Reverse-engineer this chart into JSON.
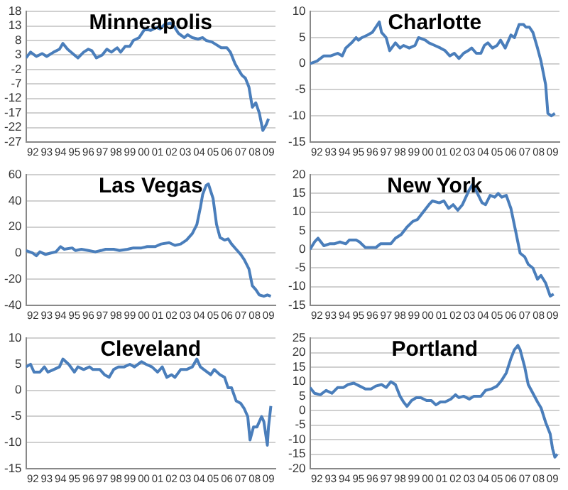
{
  "chart_data": [
    {
      "type": "line",
      "title": "Minneapolis",
      "xlim": [
        "1992-01",
        "2010-01"
      ],
      "ylim": [
        -27,
        18
      ],
      "yticks": [
        18,
        13,
        8,
        3,
        -2,
        -7,
        -12,
        -17,
        -22,
        -27
      ],
      "grid": "y",
      "xticks": [
        {
          "value": "1992-07",
          "label": "92"
        },
        {
          "value": "1993-07",
          "label": "93"
        },
        {
          "value": "1994-07",
          "label": "94"
        },
        {
          "value": "1995-07",
          "label": "95"
        },
        {
          "value": "1996-07",
          "label": "96"
        },
        {
          "value": "1997-07",
          "label": "97"
        },
        {
          "value": "1998-07",
          "label": "98"
        },
        {
          "value": "1999-07",
          "label": "99"
        },
        {
          "value": "2000-07",
          "label": "00"
        },
        {
          "value": "2001-07",
          "label": "01"
        },
        {
          "value": "2002-07",
          "label": "02"
        },
        {
          "value": "2003-07",
          "label": "03"
        },
        {
          "value": "2004-07",
          "label": "04"
        },
        {
          "value": "2005-07",
          "label": "05"
        },
        {
          "value": "2006-07",
          "label": "06"
        },
        {
          "value": "2007-07",
          "label": "07"
        },
        {
          "value": "2008-07",
          "label": "08"
        },
        {
          "value": "2009-07",
          "label": "09"
        }
      ],
      "x": [
        "1992-01",
        "1992-05",
        "1992-10",
        "1993-03",
        "1993-07",
        "1994-01",
        "1994-06",
        "1994-09",
        "1995-01",
        "1995-07",
        "1995-10",
        "1996-03",
        "1996-07",
        "1996-10",
        "1997-02",
        "1997-07",
        "1997-11",
        "1998-03",
        "1998-08",
        "1998-11",
        "1999-03",
        "1999-07",
        "1999-10",
        "2000-03",
        "2000-08",
        "2001-01",
        "2001-06",
        "2001-09",
        "2002-01",
        "2002-06",
        "2002-09",
        "2003-01",
        "2003-06",
        "2003-09",
        "2004-01",
        "2004-06",
        "2004-10",
        "2005-01",
        "2005-06",
        "2005-10",
        "2006-02",
        "2006-07",
        "2006-10",
        "2007-02",
        "2007-05",
        "2007-08",
        "2007-11",
        "2008-02",
        "2008-05",
        "2008-08",
        "2008-11",
        "2009-02",
        "2009-05",
        "2009-07"
      ],
      "series": [
        {
          "color": "#4a7ebb",
          "values": [
            2,
            4,
            2.5,
            3.5,
            2.5,
            4,
            5,
            7,
            5,
            3,
            2,
            4,
            5,
            4.5,
            2,
            3,
            5,
            4,
            5.5,
            4,
            6,
            6,
            8,
            9,
            12,
            11.5,
            12.5,
            12,
            13.5,
            14,
            13,
            10.5,
            9,
            10,
            9,
            8.5,
            9,
            8,
            7.5,
            6.5,
            5.5,
            5.5,
            4,
            0,
            -2,
            -4,
            -5,
            -8,
            -15,
            -13.5,
            -17,
            -23,
            -21,
            -19
          ]
        }
      ]
    },
    {
      "type": "line",
      "title": "Charlotte",
      "xlim": [
        "1992-01",
        "2010-01"
      ],
      "ylim": [
        -15,
        10
      ],
      "yticks": [
        10,
        5,
        0,
        -5,
        -10,
        -15
      ],
      "grid": "y",
      "xticks": [
        {
          "value": "1992-07",
          "label": "92"
        },
        {
          "value": "1993-07",
          "label": "93"
        },
        {
          "value": "1994-07",
          "label": "94"
        },
        {
          "value": "1995-07",
          "label": "95"
        },
        {
          "value": "1996-07",
          "label": "96"
        },
        {
          "value": "1997-07",
          "label": "97"
        },
        {
          "value": "1998-07",
          "label": "98"
        },
        {
          "value": "1999-07",
          "label": "99"
        },
        {
          "value": "2000-07",
          "label": "00"
        },
        {
          "value": "2001-07",
          "label": "01"
        },
        {
          "value": "2002-07",
          "label": "02"
        },
        {
          "value": "2003-07",
          "label": "03"
        },
        {
          "value": "2004-07",
          "label": "04"
        },
        {
          "value": "2005-07",
          "label": "05"
        },
        {
          "value": "2006-07",
          "label": "06"
        },
        {
          "value": "2007-07",
          "label": "07"
        },
        {
          "value": "2008-07",
          "label": "08"
        },
        {
          "value": "2009-07",
          "label": "09"
        }
      ],
      "x": [
        "1992-01",
        "1992-07",
        "1993-01",
        "1993-07",
        "1994-01",
        "1994-05",
        "1994-08",
        "1995-01",
        "1995-05",
        "1995-07",
        "1995-10",
        "1996-03",
        "1996-07",
        "1996-10",
        "1997-01",
        "1997-03",
        "1997-07",
        "1997-10",
        "1998-03",
        "1998-07",
        "1998-10",
        "1999-03",
        "1999-08",
        "1999-11",
        "2000-05",
        "2000-08",
        "2001-01",
        "2001-06",
        "2001-10",
        "2002-02",
        "2002-06",
        "2002-10",
        "2003-02",
        "2003-06",
        "2003-09",
        "2004-01",
        "2004-05",
        "2004-08",
        "2004-11",
        "2005-03",
        "2005-07",
        "2005-10",
        "2006-02",
        "2006-07",
        "2006-10",
        "2007-02",
        "2007-06",
        "2007-08",
        "2007-11",
        "2008-02",
        "2008-06",
        "2008-09",
        "2009-01",
        "2009-03",
        "2009-06",
        "2009-09"
      ],
      "series": [
        {
          "color": "#4a7ebb",
          "values": [
            0,
            0.5,
            1.5,
            1.5,
            2,
            1.5,
            3,
            4,
            5,
            4.5,
            5,
            5.5,
            6,
            7,
            8,
            6,
            5,
            2.5,
            4,
            3,
            3.5,
            3,
            3.5,
            5,
            4.5,
            4,
            3.5,
            3,
            2.5,
            1.5,
            2,
            1,
            2,
            2.5,
            3,
            2,
            2,
            3.5,
            4,
            3,
            3.5,
            4.5,
            3,
            5.5,
            5,
            7.5,
            7.5,
            7,
            7,
            6,
            3,
            0.5,
            -4,
            -9.5,
            -10,
            -9.5
          ]
        }
      ]
    },
    {
      "type": "line",
      "title": "Las Vegas",
      "xlim": [
        "1992-01",
        "2010-01"
      ],
      "ylim": [
        -40,
        60
      ],
      "yticks": [
        60,
        40,
        20,
        0,
        -20,
        -40
      ],
      "grid": "y",
      "xticks": [
        {
          "value": "1992-07",
          "label": "92"
        },
        {
          "value": "1993-07",
          "label": "93"
        },
        {
          "value": "1994-07",
          "label": "94"
        },
        {
          "value": "1995-07",
          "label": "95"
        },
        {
          "value": "1996-07",
          "label": "96"
        },
        {
          "value": "1997-07",
          "label": "97"
        },
        {
          "value": "1998-07",
          "label": "98"
        },
        {
          "value": "1999-07",
          "label": "99"
        },
        {
          "value": "2000-07",
          "label": "00"
        },
        {
          "value": "2001-07",
          "label": "01"
        },
        {
          "value": "2002-07",
          "label": "02"
        },
        {
          "value": "2003-07",
          "label": "03"
        },
        {
          "value": "2004-07",
          "label": "04"
        },
        {
          "value": "2005-07",
          "label": "05"
        },
        {
          "value": "2006-07",
          "label": "06"
        },
        {
          "value": "2007-07",
          "label": "07"
        },
        {
          "value": "2008-07",
          "label": "08"
        },
        {
          "value": "2009-07",
          "label": "09"
        }
      ],
      "x": [
        "1992-01",
        "1992-07",
        "1992-10",
        "1993-01",
        "1993-06",
        "1993-10",
        "1994-03",
        "1994-07",
        "1994-10",
        "1995-05",
        "1995-08",
        "1996-01",
        "1996-07",
        "1997-01",
        "1997-06",
        "1997-10",
        "1998-05",
        "1998-10",
        "1999-05",
        "1999-10",
        "2000-05",
        "2000-10",
        "2001-05",
        "2001-10",
        "2002-05",
        "2002-10",
        "2003-03",
        "2003-08",
        "2004-01",
        "2004-05",
        "2004-08",
        "2004-10",
        "2005-01",
        "2005-03",
        "2005-07",
        "2005-10",
        "2006-01",
        "2006-05",
        "2006-08",
        "2006-11",
        "2007-03",
        "2007-07",
        "2007-10",
        "2008-02",
        "2008-05",
        "2008-08",
        "2008-11",
        "2009-03",
        "2009-06",
        "2009-09"
      ],
      "series": [
        {
          "color": "#4a7ebb",
          "values": [
            2,
            0,
            -2,
            1,
            -1,
            0,
            1,
            5,
            3,
            4,
            2,
            3,
            2,
            1,
            2,
            3,
            3,
            2,
            3,
            4,
            4,
            5,
            5,
            7,
            8,
            6,
            7,
            10,
            15,
            22,
            35,
            45,
            52,
            53,
            42,
            22,
            12,
            10,
            11,
            7,
            3,
            -1,
            -5,
            -12,
            -25,
            -28,
            -32,
            -33,
            -32,
            -33
          ]
        }
      ]
    },
    {
      "type": "line",
      "title": "New York",
      "xlim": [
        "1992-01",
        "2010-01"
      ],
      "ylim": [
        -15,
        20
      ],
      "yticks": [
        20,
        15,
        10,
        5,
        0,
        -5,
        -10,
        -15
      ],
      "grid": "y",
      "xticks": [
        {
          "value": "1992-07",
          "label": "92"
        },
        {
          "value": "1993-07",
          "label": "93"
        },
        {
          "value": "1994-07",
          "label": "94"
        },
        {
          "value": "1995-07",
          "label": "95"
        },
        {
          "value": "1996-07",
          "label": "96"
        },
        {
          "value": "1997-07",
          "label": "97"
        },
        {
          "value": "1998-07",
          "label": "98"
        },
        {
          "value": "1999-07",
          "label": "99"
        },
        {
          "value": "2000-07",
          "label": "00"
        },
        {
          "value": "2001-07",
          "label": "01"
        },
        {
          "value": "2002-07",
          "label": "02"
        },
        {
          "value": "2003-07",
          "label": "03"
        },
        {
          "value": "2004-07",
          "label": "04"
        },
        {
          "value": "2005-07",
          "label": "05"
        },
        {
          "value": "2006-07",
          "label": "06"
        },
        {
          "value": "2007-07",
          "label": "07"
        },
        {
          "value": "2008-07",
          "label": "08"
        },
        {
          "value": "2009-07",
          "label": "09"
        }
      ],
      "x": [
        "1992-01",
        "1992-05",
        "1992-08",
        "1993-01",
        "1993-06",
        "1993-10",
        "1994-03",
        "1994-08",
        "1994-11",
        "1995-05",
        "1995-08",
        "1996-01",
        "1996-06",
        "1996-10",
        "1997-02",
        "1997-07",
        "1997-11",
        "1998-03",
        "1998-08",
        "1999-01",
        "1999-06",
        "1999-10",
        "2000-03",
        "2000-08",
        "2000-11",
        "2001-05",
        "2001-09",
        "2002-01",
        "2002-05",
        "2002-09",
        "2003-01",
        "2003-07",
        "2003-10",
        "2004-02",
        "2004-06",
        "2004-09",
        "2005-01",
        "2005-05",
        "2005-08",
        "2005-11",
        "2006-03",
        "2006-07",
        "2006-11",
        "2007-03",
        "2007-07",
        "2007-10",
        "2008-02",
        "2008-06",
        "2008-09",
        "2009-01",
        "2009-05",
        "2009-08"
      ],
      "series": [
        {
          "color": "#4a7ebb",
          "values": [
            0,
            2,
            3,
            1,
            1.5,
            1.5,
            2,
            1.5,
            2.5,
            2.5,
            2,
            0.5,
            0.5,
            0.5,
            1.5,
            1.5,
            1.5,
            3,
            4,
            6,
            7.5,
            8,
            10,
            12,
            13,
            12.5,
            13,
            11,
            12,
            10.5,
            12,
            16,
            17.5,
            15,
            12.5,
            12,
            14.5,
            14,
            15,
            14,
            14.5,
            11,
            5,
            -1,
            -2,
            -4,
            -5,
            -8,
            -7,
            -9,
            -12.5,
            -12
          ]
        }
      ]
    },
    {
      "type": "line",
      "title": "Cleveland",
      "xlim": [
        "1992-01",
        "2010-01"
      ],
      "ylim": [
        -15,
        10
      ],
      "yticks": [
        10,
        5,
        0,
        -5,
        -10,
        -15
      ],
      "grid": "y",
      "xticks": [
        {
          "value": "1992-07",
          "label": "92"
        },
        {
          "value": "1993-07",
          "label": "93"
        },
        {
          "value": "1994-07",
          "label": "94"
        },
        {
          "value": "1995-07",
          "label": "95"
        },
        {
          "value": "1996-07",
          "label": "96"
        },
        {
          "value": "1997-07",
          "label": "97"
        },
        {
          "value": "1998-07",
          "label": "98"
        },
        {
          "value": "1999-07",
          "label": "99"
        },
        {
          "value": "2000-07",
          "label": "00"
        },
        {
          "value": "2001-07",
          "label": "01"
        },
        {
          "value": "2002-07",
          "label": "02"
        },
        {
          "value": "2003-07",
          "label": "03"
        },
        {
          "value": "2004-07",
          "label": "04"
        },
        {
          "value": "2005-07",
          "label": "05"
        },
        {
          "value": "2006-07",
          "label": "06"
        },
        {
          "value": "2007-07",
          "label": "07"
        },
        {
          "value": "2008-07",
          "label": "08"
        },
        {
          "value": "2009-07",
          "label": "09"
        }
      ],
      "x": [
        "1992-01",
        "1992-05",
        "1992-08",
        "1993-01",
        "1993-05",
        "1993-08",
        "1994-01",
        "1994-06",
        "1994-09",
        "1995-02",
        "1995-07",
        "1995-10",
        "1996-03",
        "1996-08",
        "1996-11",
        "1997-05",
        "1997-09",
        "1998-01",
        "1998-05",
        "1998-09",
        "1999-02",
        "1999-07",
        "1999-11",
        "2000-05",
        "2000-09",
        "2001-02",
        "2001-07",
        "2001-11",
        "2002-03",
        "2002-07",
        "2002-10",
        "2003-03",
        "2003-08",
        "2004-01",
        "2004-05",
        "2004-08",
        "2004-11",
        "2005-05",
        "2005-08",
        "2006-01",
        "2006-05",
        "2006-08",
        "2006-11",
        "2007-03",
        "2007-07",
        "2007-10",
        "2008-01",
        "2008-03",
        "2008-06",
        "2008-09",
        "2009-01",
        "2009-03",
        "2009-06",
        "2009-07",
        "2009-09"
      ],
      "series": [
        {
          "color": "#4a7ebb",
          "values": [
            4.5,
            5,
            3.5,
            3.5,
            4.5,
            3.5,
            4,
            4.5,
            6,
            5,
            3.5,
            4.5,
            4,
            4.5,
            4,
            4,
            3,
            2.5,
            4,
            4.5,
            4.5,
            5,
            4.5,
            5.5,
            5,
            4.5,
            3.5,
            4.5,
            2.5,
            3,
            2.5,
            4,
            4,
            4.5,
            6,
            4.5,
            4,
            3,
            4,
            3,
            2.5,
            0.5,
            0.5,
            -2,
            -2.5,
            -3.5,
            -5,
            -9.5,
            -7,
            -7,
            -5,
            -6,
            -10.5,
            -7,
            -3
          ]
        }
      ]
    },
    {
      "type": "line",
      "title": "Portland",
      "xlim": [
        "1992-01",
        "2010-01"
      ],
      "ylim": [
        -20,
        25
      ],
      "yticks": [
        25,
        20,
        15,
        10,
        5,
        0,
        -5,
        -10,
        -15,
        -20
      ],
      "grid": "y",
      "xticks": [
        {
          "value": "1992-07",
          "label": "92"
        },
        {
          "value": "1993-07",
          "label": "93"
        },
        {
          "value": "1994-07",
          "label": "94"
        },
        {
          "value": "1995-07",
          "label": "95"
        },
        {
          "value": "1996-07",
          "label": "96"
        },
        {
          "value": "1997-07",
          "label": "97"
        },
        {
          "value": "1998-07",
          "label": "98"
        },
        {
          "value": "1999-07",
          "label": "99"
        },
        {
          "value": "2000-07",
          "label": "00"
        },
        {
          "value": "2001-07",
          "label": "01"
        },
        {
          "value": "2002-07",
          "label": "02"
        },
        {
          "value": "2003-07",
          "label": "03"
        },
        {
          "value": "2004-07",
          "label": "04"
        },
        {
          "value": "2005-07",
          "label": "05"
        },
        {
          "value": "2006-07",
          "label": "06"
        },
        {
          "value": "2007-07",
          "label": "07"
        },
        {
          "value": "2008-07",
          "label": "08"
        },
        {
          "value": "2009-07",
          "label": "09"
        }
      ],
      "x": [
        "1992-01",
        "1992-05",
        "1992-10",
        "1993-03",
        "1993-08",
        "1994-01",
        "1994-06",
        "1994-10",
        "1995-03",
        "1995-08",
        "1996-01",
        "1996-06",
        "1996-10",
        "1997-03",
        "1997-07",
        "1997-11",
        "1998-03",
        "1998-07",
        "1998-10",
        "1999-01",
        "1999-05",
        "1999-09",
        "2000-01",
        "2000-06",
        "2000-10",
        "2001-02",
        "2001-06",
        "2001-10",
        "2002-03",
        "2002-07",
        "2002-10",
        "2003-02",
        "2003-07",
        "2003-11",
        "2004-05",
        "2004-09",
        "2005-02",
        "2005-07",
        "2005-11",
        "2006-03",
        "2006-07",
        "2006-10",
        "2007-01",
        "2007-03",
        "2007-07",
        "2007-10",
        "2008-02",
        "2008-06",
        "2008-09",
        "2009-01",
        "2009-05",
        "2009-07",
        "2009-09",
        "2009-11"
      ],
      "series": [
        {
          "color": "#4a7ebb",
          "values": [
            8,
            6,
            5.5,
            7,
            6,
            8,
            8,
            9,
            9.5,
            8.5,
            7.5,
            7.5,
            8.5,
            9,
            8,
            10,
            9,
            5,
            3,
            1.5,
            3.5,
            4.5,
            4.5,
            3.5,
            3.5,
            2,
            3,
            3,
            4,
            5.5,
            4.5,
            5,
            4,
            5,
            5,
            7,
            7.5,
            8.5,
            10.5,
            13,
            18,
            21,
            22.5,
            21,
            15,
            9,
            6,
            3,
            1,
            -4,
            -8,
            -13,
            -16,
            -15
          ]
        }
      ]
    }
  ]
}
